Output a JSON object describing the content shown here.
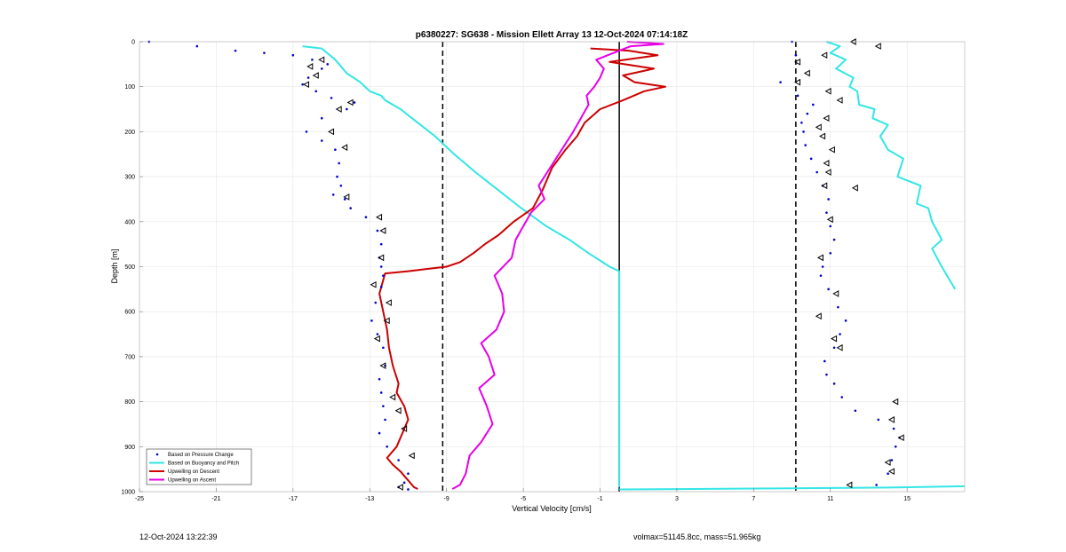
{
  "chart_data": {
    "type": "line",
    "title": "p6380227: SG638 - Mission Ellett Array 13 12-Oct-2024 07:14:18Z",
    "xlabel": "Vertical Velocity [cm/s]",
    "ylabel": "Depth [m]",
    "xlim": [
      -25,
      18
    ],
    "ylim": [
      1000,
      0
    ],
    "y_reversed": true,
    "x_ticks": [
      -25,
      -21,
      -17,
      -13,
      -9,
      -5,
      -1,
      3,
      7,
      11,
      15
    ],
    "y_ticks": [
      0,
      100,
      200,
      300,
      400,
      500,
      600,
      700,
      800,
      900,
      1000
    ],
    "grid": true,
    "legend_position": "bottom-left",
    "reference_lines": [
      {
        "x": -9.2,
        "style": "dashed",
        "color": "#000000"
      },
      {
        "x": 0.0,
        "style": "solid",
        "color": "#000000"
      },
      {
        "x": 9.2,
        "style": "dashed",
        "color": "#000000"
      }
    ],
    "series": [
      {
        "name": "Based on Pressure Change",
        "color": "#0000cc",
        "style": "dots",
        "descent": {
          "x": [
            -24.5,
            -22,
            -20,
            -18.5,
            -17,
            -16,
            -15.2,
            -15.5,
            -16.2,
            -16.5,
            -15.8,
            -15,
            -13.8,
            -14.2,
            -15.5,
            -16.3,
            -15.5,
            -14.8,
            -14.6,
            -14.7,
            -14.5,
            -14.9,
            -14.3,
            -14,
            -13.2,
            -12.6,
            -12.4,
            -12.5,
            -12.4,
            -12.3,
            -12.4,
            -12.7,
            -12.9,
            -12.6,
            -12.3,
            -12.2,
            -12.5,
            -12.4,
            -12.3,
            -12.2,
            -12.5,
            -12.1,
            -11.5,
            -11,
            -11.2,
            -11.5,
            -11
          ],
          "y": [
            0,
            10,
            20,
            25,
            30,
            40,
            50,
            60,
            80,
            95,
            110,
            125,
            135,
            150,
            170,
            200,
            220,
            240,
            270,
            300,
            320,
            340,
            350,
            370,
            390,
            420,
            450,
            480,
            500,
            520,
            545,
            580,
            620,
            650,
            680,
            720,
            750,
            780,
            810,
            840,
            870,
            900,
            930,
            960,
            980,
            990,
            995
          ]
        },
        "ascent": {
          "x": [
            9.0,
            9.2,
            8.4,
            9.3,
            10.1,
            9.8,
            9.5,
            9.6,
            9.7,
            10.0,
            10.3,
            10.6,
            10.9,
            10.8,
            11.0,
            11.2,
            11.0,
            10.6,
            10.5,
            10.9,
            11.4,
            11.8,
            11.5,
            11.2,
            10.7,
            10.8,
            11.2,
            11.6,
            12.3,
            13.5,
            14.3,
            14.6,
            14.4,
            14.2,
            14.0,
            13.4
          ],
          "y": [
            0,
            30,
            90,
            120,
            140,
            160,
            180,
            200,
            230,
            260,
            290,
            320,
            350,
            380,
            410,
            440,
            470,
            500,
            520,
            550,
            590,
            620,
            650,
            680,
            710,
            740,
            760,
            790,
            820,
            840,
            860,
            880,
            900,
            930,
            960,
            985
          ]
        }
      },
      {
        "name": "Based on Buoyancy and Pitch",
        "color": "#33e6e6",
        "style": "line",
        "descent": {
          "x": [
            -16.5,
            -15.5,
            -14.8,
            -14.2,
            -13.5,
            -13,
            -12.4,
            -12.2,
            -11.4,
            -10.5,
            -9.6,
            -8.6,
            -7.5,
            -6.3,
            -5.1,
            -3.8,
            -2.6,
            -1.6,
            -0.5,
            0.0,
            0.0,
            0.0,
            0.0
          ],
          "y": [
            10,
            15,
            40,
            70,
            90,
            110,
            120,
            130,
            150,
            180,
            210,
            250,
            290,
            330,
            370,
            410,
            440,
            470,
            500,
            510,
            600,
            800,
            990
          ]
        },
        "ascent": {
          "x": [
            17.5,
            16.8,
            16.3,
            16.8,
            16.3,
            16.1,
            15.5,
            15.7,
            14.5,
            14.8,
            14.0,
            13.6,
            14.0,
            13.2,
            13.3,
            12.5,
            12.4,
            12.0,
            12.2,
            11.3,
            11.8,
            11.0,
            11.5,
            10.8
          ],
          "y": [
            550,
            500,
            460,
            440,
            400,
            370,
            360,
            320,
            300,
            260,
            240,
            210,
            185,
            170,
            150,
            140,
            110,
            100,
            80,
            60,
            40,
            25,
            10,
            0
          ]
        },
        "bottom": {
          "x": [
            0.0,
            7,
            14,
            18
          ],
          "y": [
            995,
            993,
            991,
            988
          ]
        }
      },
      {
        "name": "Upwelling on Descent",
        "color": "#cc0000",
        "style": "line",
        "x": [
          -1.5,
          0.5,
          2.0,
          -0.5,
          1.8,
          0.2,
          0.8,
          2.4,
          1.3,
          0.2,
          -1.0,
          -1.8,
          -2.2,
          -2.8,
          -3.5,
          -4.0,
          -4.5,
          -5.5,
          -6.3,
          -7.0,
          -7.6,
          -8.3,
          -9.0,
          -10.0,
          -11.0,
          -12.2,
          -12.5,
          -12.3,
          -12.1,
          -12.0,
          -11.8,
          -11.5,
          -11.6,
          -11.2,
          -11.0,
          -11.3,
          -11.6,
          -12.1,
          -11.8,
          -11.4,
          -11.2,
          -11.0,
          -10.8,
          -10.7,
          -10.5
        ],
        "y": [
          15,
          20,
          30,
          45,
          60,
          75,
          90,
          100,
          110,
          130,
          150,
          180,
          210,
          240,
          280,
          330,
          370,
          400,
          430,
          450,
          470,
          490,
          500,
          505,
          510,
          515,
          560,
          600,
          640,
          680,
          720,
          760,
          780,
          810,
          840,
          870,
          900,
          925,
          940,
          955,
          965,
          975,
          985,
          990,
          994
        ]
      },
      {
        "name": "Upwelling on Ascent",
        "color": "#e600e6",
        "style": "line",
        "x": [
          -8.7,
          -8.3,
          -8.0,
          -7.8,
          -7.2,
          -6.6,
          -6.9,
          -7.3,
          -6.5,
          -6.8,
          -7.2,
          -6.4,
          -6.0,
          -6.1,
          -6.5,
          -5.6,
          -5.4,
          -5.0,
          -4.6,
          -3.9,
          -4.2,
          -3.6,
          -3.0,
          -2.4,
          -2.0,
          -1.6,
          -1.7,
          -1.3,
          -1.0,
          -0.8,
          -1.2,
          -0.6,
          0.0,
          0.6,
          2.3,
          0.4
        ],
        "y": [
          994,
          985,
          960,
          920,
          890,
          850,
          810,
          770,
          740,
          700,
          670,
          640,
          600,
          560,
          520,
          480,
          440,
          410,
          380,
          350,
          320,
          280,
          240,
          200,
          170,
          140,
          120,
          100,
          80,
          60,
          40,
          30,
          20,
          10,
          5,
          0
        ]
      }
    ],
    "markers": {
      "name": "triangles",
      "color": "#000000",
      "descent": {
        "x": [
          -15.5,
          -16.1,
          -15.8,
          -16.3,
          -14.0,
          -14.6,
          -15.0,
          -14.3,
          -14.2,
          -12.5,
          -12.3,
          -12.4,
          -12.8,
          -12.0,
          -12.1,
          -12.6,
          -12.3,
          -11.8,
          -11.5,
          -11.2,
          -10.8,
          -11.4
        ],
        "y": [
          40,
          55,
          75,
          95,
          135,
          150,
          200,
          235,
          345,
          390,
          420,
          480,
          540,
          580,
          620,
          660,
          720,
          790,
          820,
          860,
          920,
          990
        ]
      },
      "ascent": {
        "x": [
          12.2,
          13.5,
          10.7,
          9.3,
          9.8,
          9.3,
          10.9,
          11.5,
          10.8,
          10.4,
          10.6,
          11.1,
          10.8,
          10.9,
          10.7,
          12.3,
          11.0,
          10.5,
          11.3,
          10.4,
          11.2,
          11.5,
          14.4,
          14.2,
          14.7,
          14.0,
          14.2,
          12.0
        ],
        "y": [
          0,
          10,
          30,
          45,
          70,
          90,
          110,
          130,
          170,
          190,
          210,
          240,
          270,
          290,
          320,
          325,
          395,
          480,
          560,
          610,
          660,
          680,
          800,
          840,
          880,
          935,
          955,
          985
        ]
      }
    }
  },
  "footer": {
    "left": "12-Oct-2024 13:22:39",
    "right": "volmax=51145.8cc, mass=51.965kg"
  }
}
